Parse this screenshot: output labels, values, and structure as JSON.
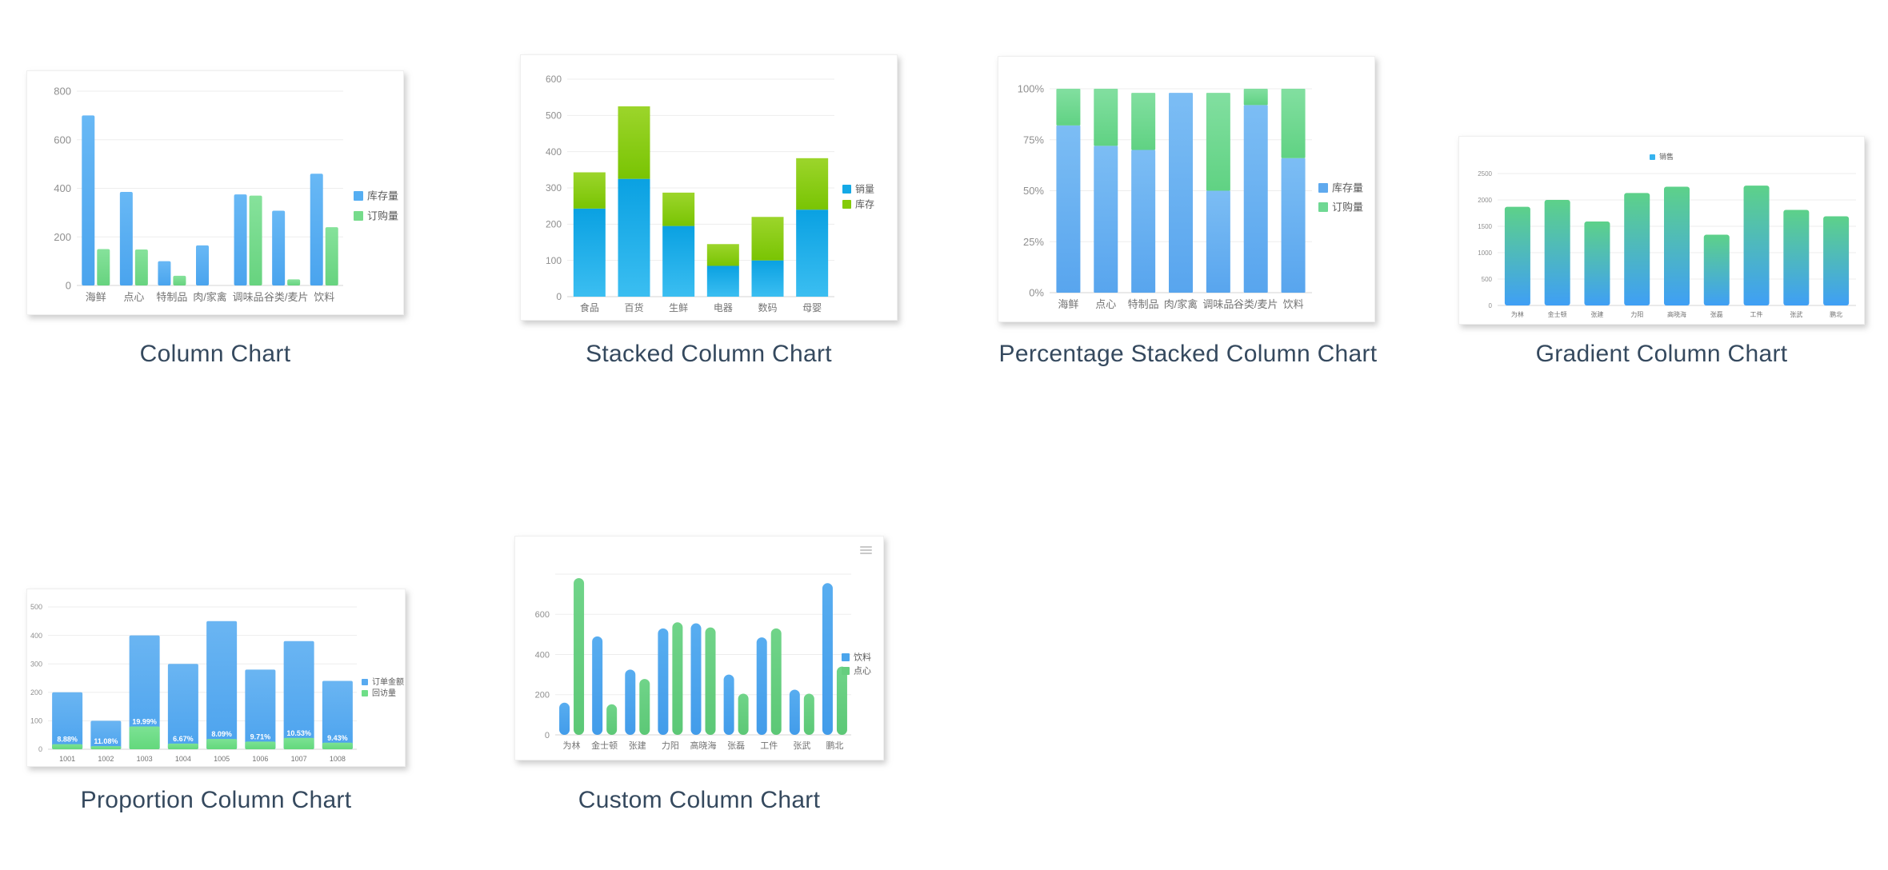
{
  "page": {
    "background": "#ffffff",
    "title_color": "#35495e"
  },
  "chart_data": [
    {
      "key": "column",
      "title": "Column Chart",
      "type": "grouped-bar",
      "categories": [
        "海鲜",
        "点心",
        "特制品",
        "肉/家禽",
        "调味品",
        "谷类/麦片",
        "饮料"
      ],
      "series": [
        {
          "name": "库存量",
          "color": "#55aef2",
          "color_top": "#68b8f5",
          "color_bottom": "#4aa4ee",
          "values": [
            700,
            385,
            100,
            165,
            375,
            308,
            460
          ]
        },
        {
          "name": "订购量",
          "color": "#76db8b",
          "color_top": "#86e29b",
          "color_bottom": "#67d37f",
          "values": [
            150,
            148,
            40,
            0,
            370,
            25,
            240
          ]
        }
      ],
      "yticks": [
        0,
        200,
        400,
        600,
        800
      ],
      "ylim": [
        0,
        800
      ],
      "legend_position": "right",
      "grid": true
    },
    {
      "key": "stacked",
      "title": "Stacked Column Chart",
      "type": "stacked-bar",
      "categories": [
        "食品",
        "百货",
        "生鲜",
        "电器",
        "数码",
        "母婴"
      ],
      "series": [
        {
          "name": "销量",
          "color": "#14a9e6",
          "color_top": "#0aa1e2",
          "color_bottom": "#3bbef1",
          "values": [
            243,
            325,
            195,
            85,
            100,
            240
          ]
        },
        {
          "name": "库存",
          "color": "#84cb06",
          "color_top": "#9cd52b",
          "color_bottom": "#79c403",
          "values": [
            100,
            200,
            92,
            60,
            120,
            142
          ]
        }
      ],
      "yticks": [
        0,
        100,
        200,
        300,
        400,
        500,
        600
      ],
      "ylim": [
        0,
        600
      ],
      "legend_position": "right",
      "grid": true
    },
    {
      "key": "percent",
      "title": "Percentage Stacked Column Chart",
      "type": "percent-stacked-bar",
      "categories": [
        "海鲜",
        "点心",
        "特制品",
        "肉/家禽",
        "调味品",
        "谷类/麦片",
        "饮料"
      ],
      "series": [
        {
          "name": "库存量",
          "color": "#5fa9ee",
          "color_top": "#7cbdf4",
          "color_bottom": "#58a5ee",
          "values": [
            82,
            72,
            70,
            98,
            50,
            92,
            66
          ]
        },
        {
          "name": "订购量",
          "color": "#6fd893",
          "color_top": "#82dfa0",
          "color_bottom": "#60d283",
          "values": [
            18,
            28,
            28,
            0,
            48,
            8,
            34
          ]
        }
      ],
      "yticks": [
        0,
        25,
        50,
        75,
        100
      ],
      "ytick_labels": [
        "0%",
        "25%",
        "50%",
        "75%",
        "100%"
      ],
      "ylim": [
        0,
        100
      ],
      "legend_position": "right",
      "grid": true
    },
    {
      "key": "gradient",
      "title": "Gradient Column Chart",
      "type": "gradient-bar",
      "categories": [
        "为林",
        "金士顿",
        "张建",
        "力阳",
        "高晓海",
        "张磊",
        "工件",
        "张武",
        "鹏北"
      ],
      "series": [
        {
          "name": "销售",
          "color": "#36b3ef",
          "color_top": "#5dd189",
          "color_bottom": "#3f9ff5",
          "values": [
            1870,
            2000,
            1590,
            2130,
            2250,
            1340,
            2270,
            1810,
            1690
          ]
        }
      ],
      "yticks": [
        0,
        500,
        1000,
        1500,
        2000,
        2500
      ],
      "ylim": [
        0,
        2500
      ],
      "legend_position": "top",
      "grid": true
    },
    {
      "key": "proportion",
      "title": "Proportion Column Chart",
      "type": "proportion-bar",
      "categories": [
        "1001",
        "1002",
        "1003",
        "1004",
        "1005",
        "1006",
        "1007",
        "1008"
      ],
      "series": [
        {
          "name": "订单金额",
          "color": "#58aaf0",
          "color_top": "#6ab5f2",
          "color_bottom": "#4ca3ee",
          "values": [
            200,
            100,
            400,
            300,
            450,
            280,
            380,
            240
          ]
        },
        {
          "name": "回访量",
          "color": "#6fde88",
          "color_top": "#7ce294",
          "color_bottom": "#63d87c",
          "values": [
            18,
            11,
            80,
            20,
            36,
            27,
            40,
            23
          ]
        }
      ],
      "bar_labels": [
        "8.88%",
        "11.08%",
        "19.99%",
        "6.67%",
        "8.09%",
        "9.71%",
        "10.53%",
        "9.43%"
      ],
      "yticks": [
        0,
        100,
        200,
        300,
        400,
        500
      ],
      "ylim": [
        0,
        500
      ],
      "legend_position": "right",
      "grid": true
    },
    {
      "key": "custom",
      "title": "Custom Column Chart",
      "type": "custom-rounded-bar",
      "categories": [
        "为林",
        "金士顿",
        "张建",
        "力阳",
        "高晓海",
        "张磊",
        "工件",
        "张武",
        "鹏北"
      ],
      "series": [
        {
          "name": "饮料",
          "color": "#4ba5ec",
          "color_top": "#58adf0",
          "color_bottom": "#429cea",
          "values": [
            160,
            490,
            325,
            530,
            555,
            300,
            485,
            225,
            755
          ]
        },
        {
          "name": "点心",
          "color": "#66ce7f",
          "color_top": "#70d489",
          "color_bottom": "#5cc876",
          "values": [
            780,
            152,
            278,
            560,
            535,
            205,
            530,
            205,
            340
          ]
        }
      ],
      "yticks": [
        0,
        200,
        400,
        600,
        800
      ],
      "ytick_labels": [
        "0",
        "200",
        "400",
        "600",
        ""
      ],
      "ylim": [
        0,
        800
      ],
      "legend_position": "right",
      "toolbar_icon": "hamburger-menu",
      "grid": true
    }
  ]
}
